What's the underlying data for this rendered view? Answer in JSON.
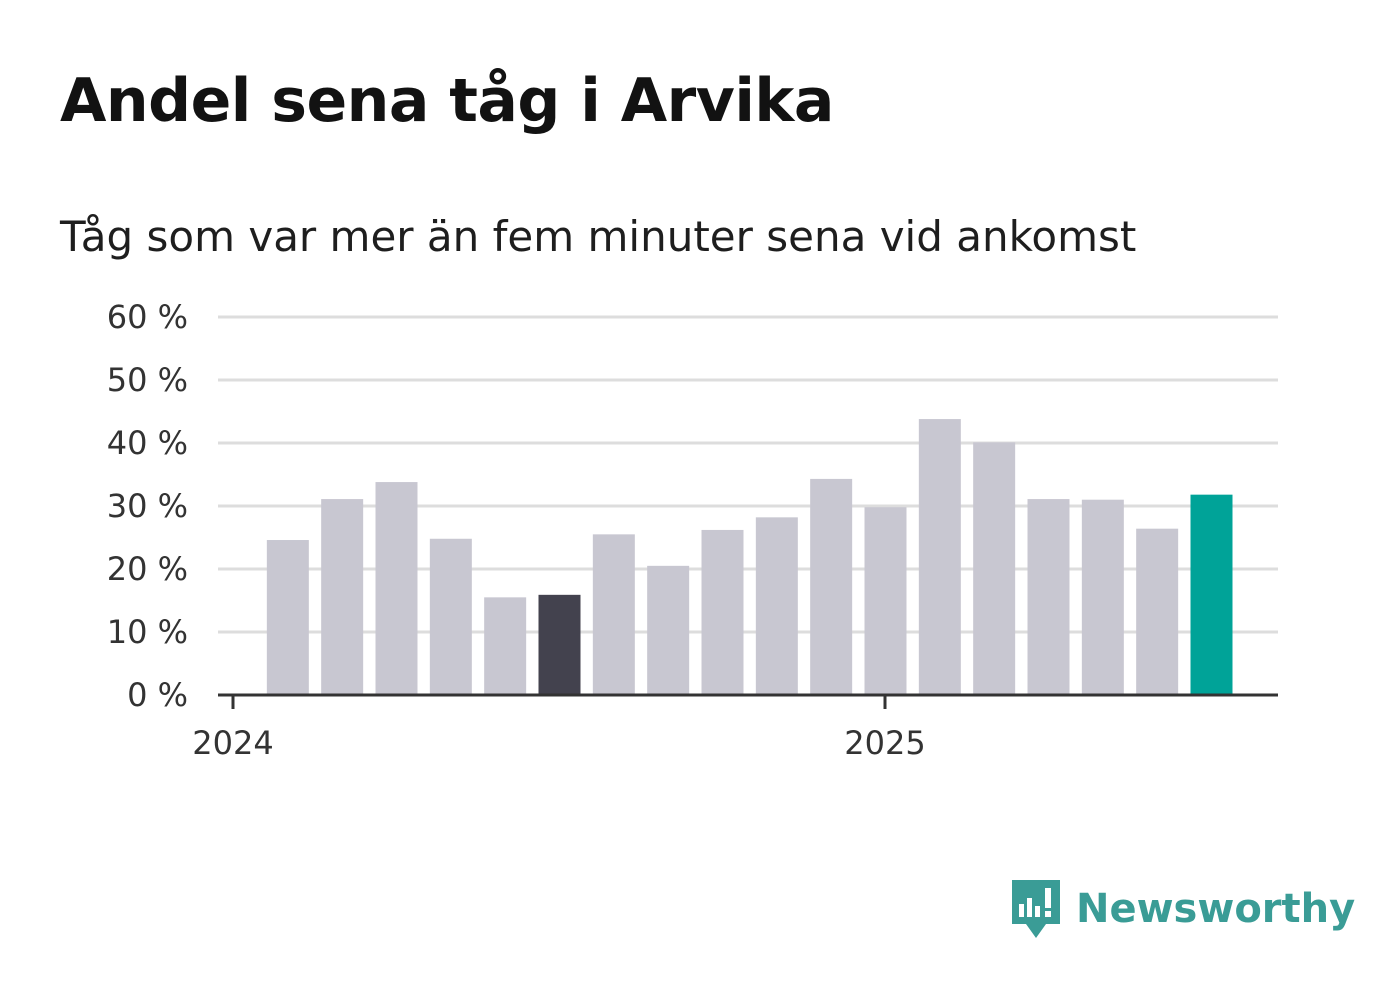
{
  "title": "Andel sena tåg i Arvika",
  "subtitle": "Tåg som var mer än fem minuter sena vid ankomst",
  "brand": {
    "name": "Newsworthy",
    "icon": "newsworthy-logo-icon"
  },
  "colors": {
    "bar": "#c8c7d1",
    "highlight_dark": "#43424e",
    "highlight_current": "#00a398",
    "grid": "#dddddd",
    "axis": "#333333",
    "brand": "#3a9c96"
  },
  "chart_data": {
    "type": "bar",
    "title": "Andel sena tåg i Arvika",
    "subtitle": "Tåg som var mer än fem minuter sena vid ankomst",
    "xlabel": "",
    "ylabel": "",
    "ylim": [
      0,
      60
    ],
    "y_ticks": [
      "0 %",
      "10 %",
      "20 %",
      "30 %",
      "40 %",
      "50 %",
      "60 %"
    ],
    "x_tick_labels": [
      "2024",
      "2025"
    ],
    "grid": true,
    "values": [
      24.6,
      31.1,
      33.8,
      24.8,
      15.5,
      15.9,
      25.5,
      20.5,
      26.2,
      28.2,
      34.3,
      29.8,
      43.8,
      40.1,
      31.1,
      31.0,
      26.4,
      31.8
    ],
    "highlights": {
      "5": "highlight_dark",
      "17": "highlight_current"
    }
  }
}
